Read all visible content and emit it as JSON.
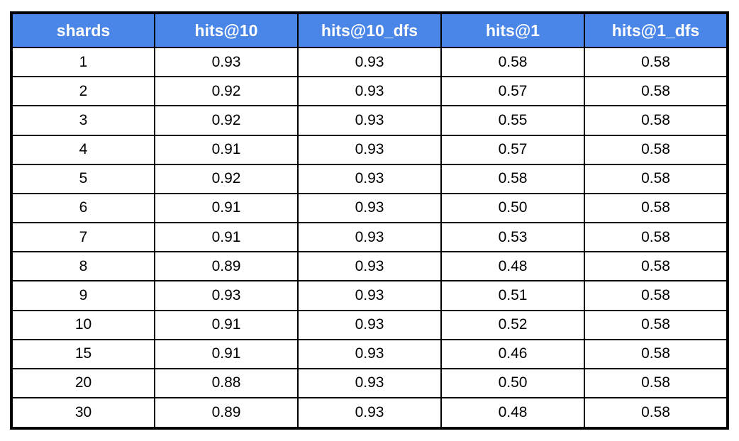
{
  "colors": {
    "header_bg": "#4a86e8",
    "header_text": "#ffffff",
    "cell_text": "#000000",
    "border": "#000000",
    "page_bg": "#ffffff"
  },
  "table": {
    "headers": [
      "shards",
      "hits@10",
      "hits@10_dfs",
      "hits@1",
      "hits@1_dfs"
    ],
    "rows": [
      [
        "1",
        "0.93",
        "0.93",
        "0.58",
        "0.58"
      ],
      [
        "2",
        "0.92",
        "0.93",
        "0.57",
        "0.58"
      ],
      [
        "3",
        "0.92",
        "0.93",
        "0.55",
        "0.58"
      ],
      [
        "4",
        "0.91",
        "0.93",
        "0.57",
        "0.58"
      ],
      [
        "5",
        "0.92",
        "0.93",
        "0.58",
        "0.58"
      ],
      [
        "6",
        "0.91",
        "0.93",
        "0.50",
        "0.58"
      ],
      [
        "7",
        "0.91",
        "0.93",
        "0.53",
        "0.58"
      ],
      [
        "8",
        "0.89",
        "0.93",
        "0.48",
        "0.58"
      ],
      [
        "9",
        "0.93",
        "0.93",
        "0.51",
        "0.58"
      ],
      [
        "10",
        "0.91",
        "0.93",
        "0.52",
        "0.58"
      ],
      [
        "15",
        "0.91",
        "0.93",
        "0.46",
        "0.58"
      ],
      [
        "20",
        "0.88",
        "0.93",
        "0.50",
        "0.58"
      ],
      [
        "30",
        "0.89",
        "0.93",
        "0.48",
        "0.58"
      ]
    ]
  },
  "chart_data": {
    "type": "table",
    "title": "",
    "columns": [
      "shards",
      "hits@10",
      "hits@10_dfs",
      "hits@1",
      "hits@1_dfs"
    ],
    "categories": [
      1,
      2,
      3,
      4,
      5,
      6,
      7,
      8,
      9,
      10,
      15,
      20,
      30
    ],
    "series": [
      {
        "name": "hits@10",
        "values": [
          0.93,
          0.92,
          0.92,
          0.91,
          0.92,
          0.91,
          0.91,
          0.89,
          0.93,
          0.91,
          0.91,
          0.88,
          0.89
        ]
      },
      {
        "name": "hits@10_dfs",
        "values": [
          0.93,
          0.93,
          0.93,
          0.93,
          0.93,
          0.93,
          0.93,
          0.93,
          0.93,
          0.93,
          0.93,
          0.93,
          0.93
        ]
      },
      {
        "name": "hits@1",
        "values": [
          0.58,
          0.57,
          0.55,
          0.57,
          0.58,
          0.5,
          0.53,
          0.48,
          0.51,
          0.52,
          0.46,
          0.5,
          0.48
        ]
      },
      {
        "name": "hits@1_dfs",
        "values": [
          0.58,
          0.58,
          0.58,
          0.58,
          0.58,
          0.58,
          0.58,
          0.58,
          0.58,
          0.58,
          0.58,
          0.58,
          0.58
        ]
      }
    ]
  }
}
